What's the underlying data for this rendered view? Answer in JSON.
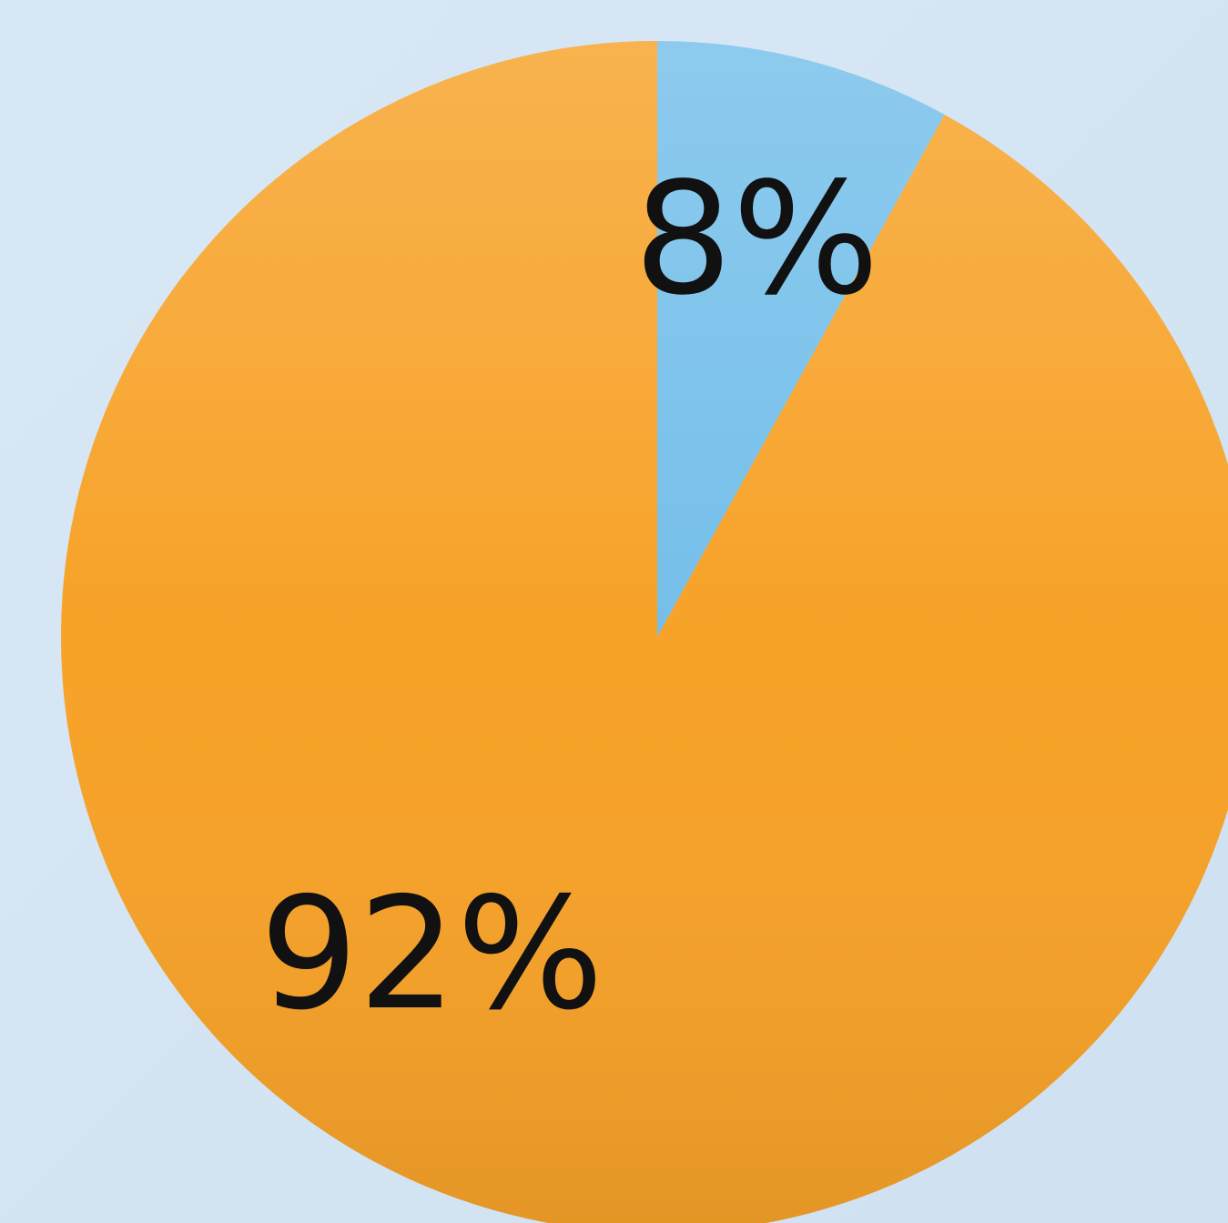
{
  "chart_data": {
    "type": "pie",
    "values": [
      8,
      92
    ],
    "value_labels": [
      "8%",
      "92%"
    ],
    "colors": [
      "#74bfea",
      "#f7a228"
    ],
    "start_angle": 0,
    "direction": "clockwise"
  }
}
